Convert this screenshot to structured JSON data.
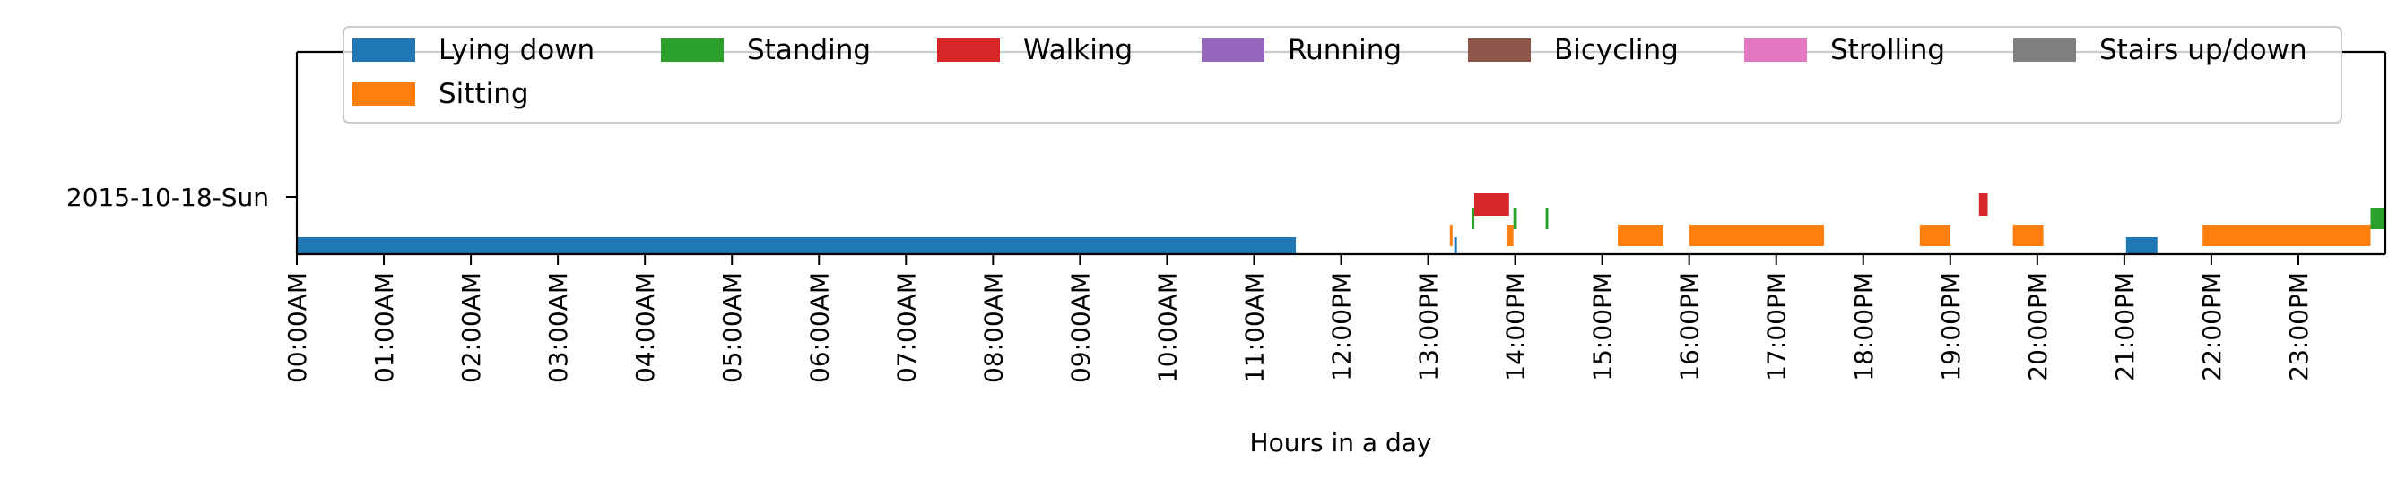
{
  "chart_data": {
    "type": "timeline",
    "xlabel": "Hours in a day",
    "ylabel": "",
    "title": "",
    "xlim": [
      0,
      24
    ],
    "grid": false,
    "legend_position": "top",
    "y_categories": [
      "2015-10-18-Sun"
    ],
    "x_tick_labels": [
      "00:00AM",
      "01:00AM",
      "02:00AM",
      "03:00AM",
      "04:00AM",
      "05:00AM",
      "06:00AM",
      "07:00AM",
      "08:00AM",
      "09:00AM",
      "10:00AM",
      "11:00AM",
      "12:00PM",
      "13:00PM",
      "14:00PM",
      "15:00PM",
      "16:00PM",
      "17:00PM",
      "18:00PM",
      "19:00PM",
      "20:00PM",
      "21:00PM",
      "22:00PM",
      "23:00PM"
    ],
    "series": [
      {
        "name": "Lying down",
        "color": "#1f77b4",
        "segments": [
          [
            0.0,
            11.48
          ],
          [
            13.3,
            13.32
          ],
          [
            21.02,
            21.38
          ]
        ]
      },
      {
        "name": "Standing",
        "color": "#2ca02c",
        "segments": [
          [
            13.5,
            13.52
          ],
          [
            13.98,
            14.02
          ],
          [
            14.35,
            14.37
          ],
          [
            23.83,
            24.0
          ]
        ]
      },
      {
        "name": "Walking",
        "color": "#d62728",
        "segments": [
          [
            13.53,
            13.93
          ],
          [
            19.33,
            19.43
          ]
        ]
      },
      {
        "name": "Running",
        "color": "#9467bd",
        "segments": []
      },
      {
        "name": "Bicycling",
        "color": "#8c564b",
        "segments": []
      },
      {
        "name": "Strolling",
        "color": "#e377c2",
        "segments": []
      },
      {
        "name": "Stairs up/down",
        "color": "#7f7f7f",
        "segments": []
      },
      {
        "name": "Sitting",
        "color": "#ff7f0e",
        "segments": [
          [
            13.25,
            13.28
          ],
          [
            13.9,
            13.98
          ],
          [
            15.18,
            15.7
          ],
          [
            16.0,
            17.55
          ],
          [
            18.65,
            19.0
          ],
          [
            19.72,
            20.07
          ],
          [
            21.9,
            23.83
          ]
        ]
      }
    ]
  }
}
